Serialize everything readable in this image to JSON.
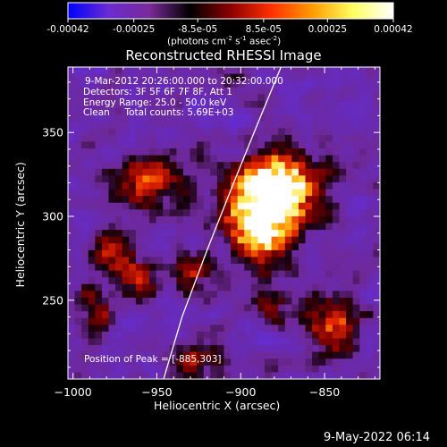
{
  "colorbar": {
    "ticks": [
      "-0.00042",
      "-0.00025",
      "-8.5e-05",
      "8.5e-05",
      "0.00025",
      "0.00042"
    ],
    "tick_values": [
      -0.00042,
      -0.00025,
      -8.5e-05,
      8.5e-05,
      0.00025,
      0.00042
    ],
    "units_prefix": "(photons cm",
    "units_exp1": "-2",
    "units_mid": " s",
    "units_exp2": "-1",
    "units_mid2": " asec",
    "units_exp3": "-2",
    "units_suffix": ")",
    "colors": [
      "#0000ff",
      "#6a2bd0",
      "#7a2a9a",
      "#000000",
      "#8b0000",
      "#ff3000",
      "#ff9a00",
      "#ffff60",
      "#ffffff"
    ]
  },
  "plot": {
    "title": "Reconstructed RHESSI Image",
    "info_lines": [
      "9-Mar-2012 20:26:00.000 to 20:32:00.000",
      "Detectors: 3F 5F 6F 7F 8F, Att 1",
      "Energy Range: 25.0 - 50.0 keV",
      "Clean     Total counts: 5.69E+03"
    ],
    "peak_label": "Position of Peak = [-885,303]",
    "footer_date": "9-May-2022 06:14"
  },
  "chart_data": {
    "type": "heatmap",
    "title": "Reconstructed RHESSI Image",
    "xlabel": "Heliocentric X (arcsec)",
    "ylabel": "Heliocentric Y (arcsec)",
    "xlim": [
      -1003,
      -817
    ],
    "ylim": [
      203,
      389
    ],
    "xticks": [
      -1000,
      -950,
      -900,
      -850
    ],
    "xtick_labels": [
      "−1000",
      "−950",
      "−900",
      "−850"
    ],
    "yticks": [
      250,
      300,
      350
    ],
    "ytick_labels": [
      "250",
      "300",
      "350"
    ],
    "peak": [
      -885,
      303
    ],
    "limb_curve": [
      [
        -946,
        203
      ],
      [
        -935,
        240
      ],
      [
        -920,
        280
      ],
      [
        -905,
        318
      ],
      [
        -890,
        355
      ],
      [
        -876,
        389
      ]
    ],
    "sources": [
      {
        "x": -886,
        "y": 307,
        "amp": 1.0,
        "r": 17
      },
      {
        "x": -875,
        "y": 318,
        "amp": 0.8,
        "r": 12
      },
      {
        "x": -890,
        "y": 288,
        "amp": 0.6,
        "r": 10
      },
      {
        "x": -955,
        "y": 318,
        "amp": 0.55,
        "r": 11
      },
      {
        "x": -975,
        "y": 278,
        "amp": 0.5,
        "r": 9
      },
      {
        "x": -960,
        "y": 262,
        "amp": 0.45,
        "r": 8
      },
      {
        "x": -930,
        "y": 265,
        "amp": 0.45,
        "r": 8
      },
      {
        "x": -845,
        "y": 235,
        "amp": 0.55,
        "r": 12
      },
      {
        "x": -985,
        "y": 245,
        "amp": 0.4,
        "r": 8
      },
      {
        "x": -925,
        "y": 215,
        "amp": 0.4,
        "r": 10
      },
      {
        "x": -880,
        "y": 245,
        "amp": 0.3,
        "r": 9
      }
    ],
    "value_range": [
      -0.00042,
      0.00042
    ],
    "grid": false
  }
}
